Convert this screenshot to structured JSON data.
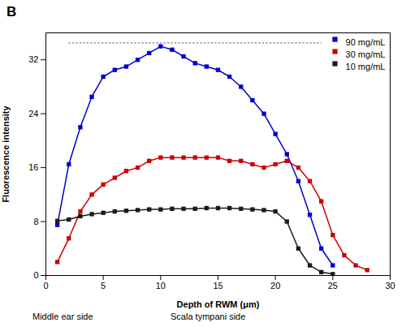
{
  "chart_data": {
    "type": "line",
    "title": "B",
    "xlabel": "Depth of RWM (μm)",
    "ylabel": "Fluorescence intensity",
    "xlim": [
      0,
      30
    ],
    "ylim": [
      0,
      36
    ],
    "xticks": [
      0,
      5,
      10,
      15,
      20,
      25,
      30
    ],
    "yticks": [
      0,
      8,
      16,
      24,
      32
    ],
    "grid": false,
    "legend": "upper right",
    "marker": "square",
    "series": [
      {
        "name": "90 mg/mL",
        "color": "#0000cc",
        "x": [
          1,
          2,
          3,
          4,
          5,
          6,
          7,
          8,
          9,
          10,
          11,
          12,
          13,
          14,
          15,
          16,
          17,
          18,
          19,
          20,
          21,
          22,
          23,
          24,
          25
        ],
        "values": [
          7.5,
          16.5,
          22.0,
          26.5,
          29.5,
          30.5,
          31.0,
          32.0,
          33.0,
          34.0,
          33.5,
          32.5,
          31.5,
          31.0,
          30.5,
          29.5,
          28.0,
          26.0,
          24.0,
          21.0,
          18.0,
          14.0,
          9.0,
          4.0,
          1.5
        ]
      },
      {
        "name": "30 mg/mL",
        "color": "#cc0000",
        "x": [
          1,
          2,
          3,
          4,
          5,
          6,
          7,
          8,
          9,
          10,
          11,
          12,
          13,
          14,
          15,
          16,
          17,
          18,
          19,
          20,
          21,
          22,
          23,
          24,
          25,
          26,
          27,
          28
        ],
        "values": [
          2.0,
          5.5,
          9.5,
          12.0,
          13.5,
          14.5,
          15.5,
          16.0,
          17.0,
          17.5,
          17.5,
          17.5,
          17.5,
          17.5,
          17.5,
          17.0,
          17.0,
          16.5,
          16.0,
          16.5,
          17.0,
          16.0,
          14.0,
          11.0,
          6.0,
          3.0,
          1.5,
          0.8
        ]
      },
      {
        "name": "10 mg/mL",
        "color": "#1a1a1a",
        "x": [
          1,
          2,
          3,
          4,
          5,
          6,
          7,
          8,
          9,
          10,
          11,
          12,
          13,
          14,
          15,
          16,
          17,
          18,
          19,
          20,
          21,
          22,
          23,
          24,
          25
        ],
        "values": [
          8.1,
          8.3,
          8.8,
          9.1,
          9.3,
          9.5,
          9.6,
          9.7,
          9.8,
          9.8,
          9.9,
          9.9,
          9.9,
          10.0,
          10.0,
          10.0,
          9.9,
          9.8,
          9.7,
          9.5,
          8.0,
          4.0,
          1.5,
          0.5,
          0.2
        ]
      }
    ],
    "reference_line": {
      "y": 34.5,
      "x": [
        2,
        24
      ],
      "color": "gray",
      "line_style": "dotted"
    },
    "bottom_labels": [
      "Middle ear side",
      "Scala tympani side"
    ]
  }
}
